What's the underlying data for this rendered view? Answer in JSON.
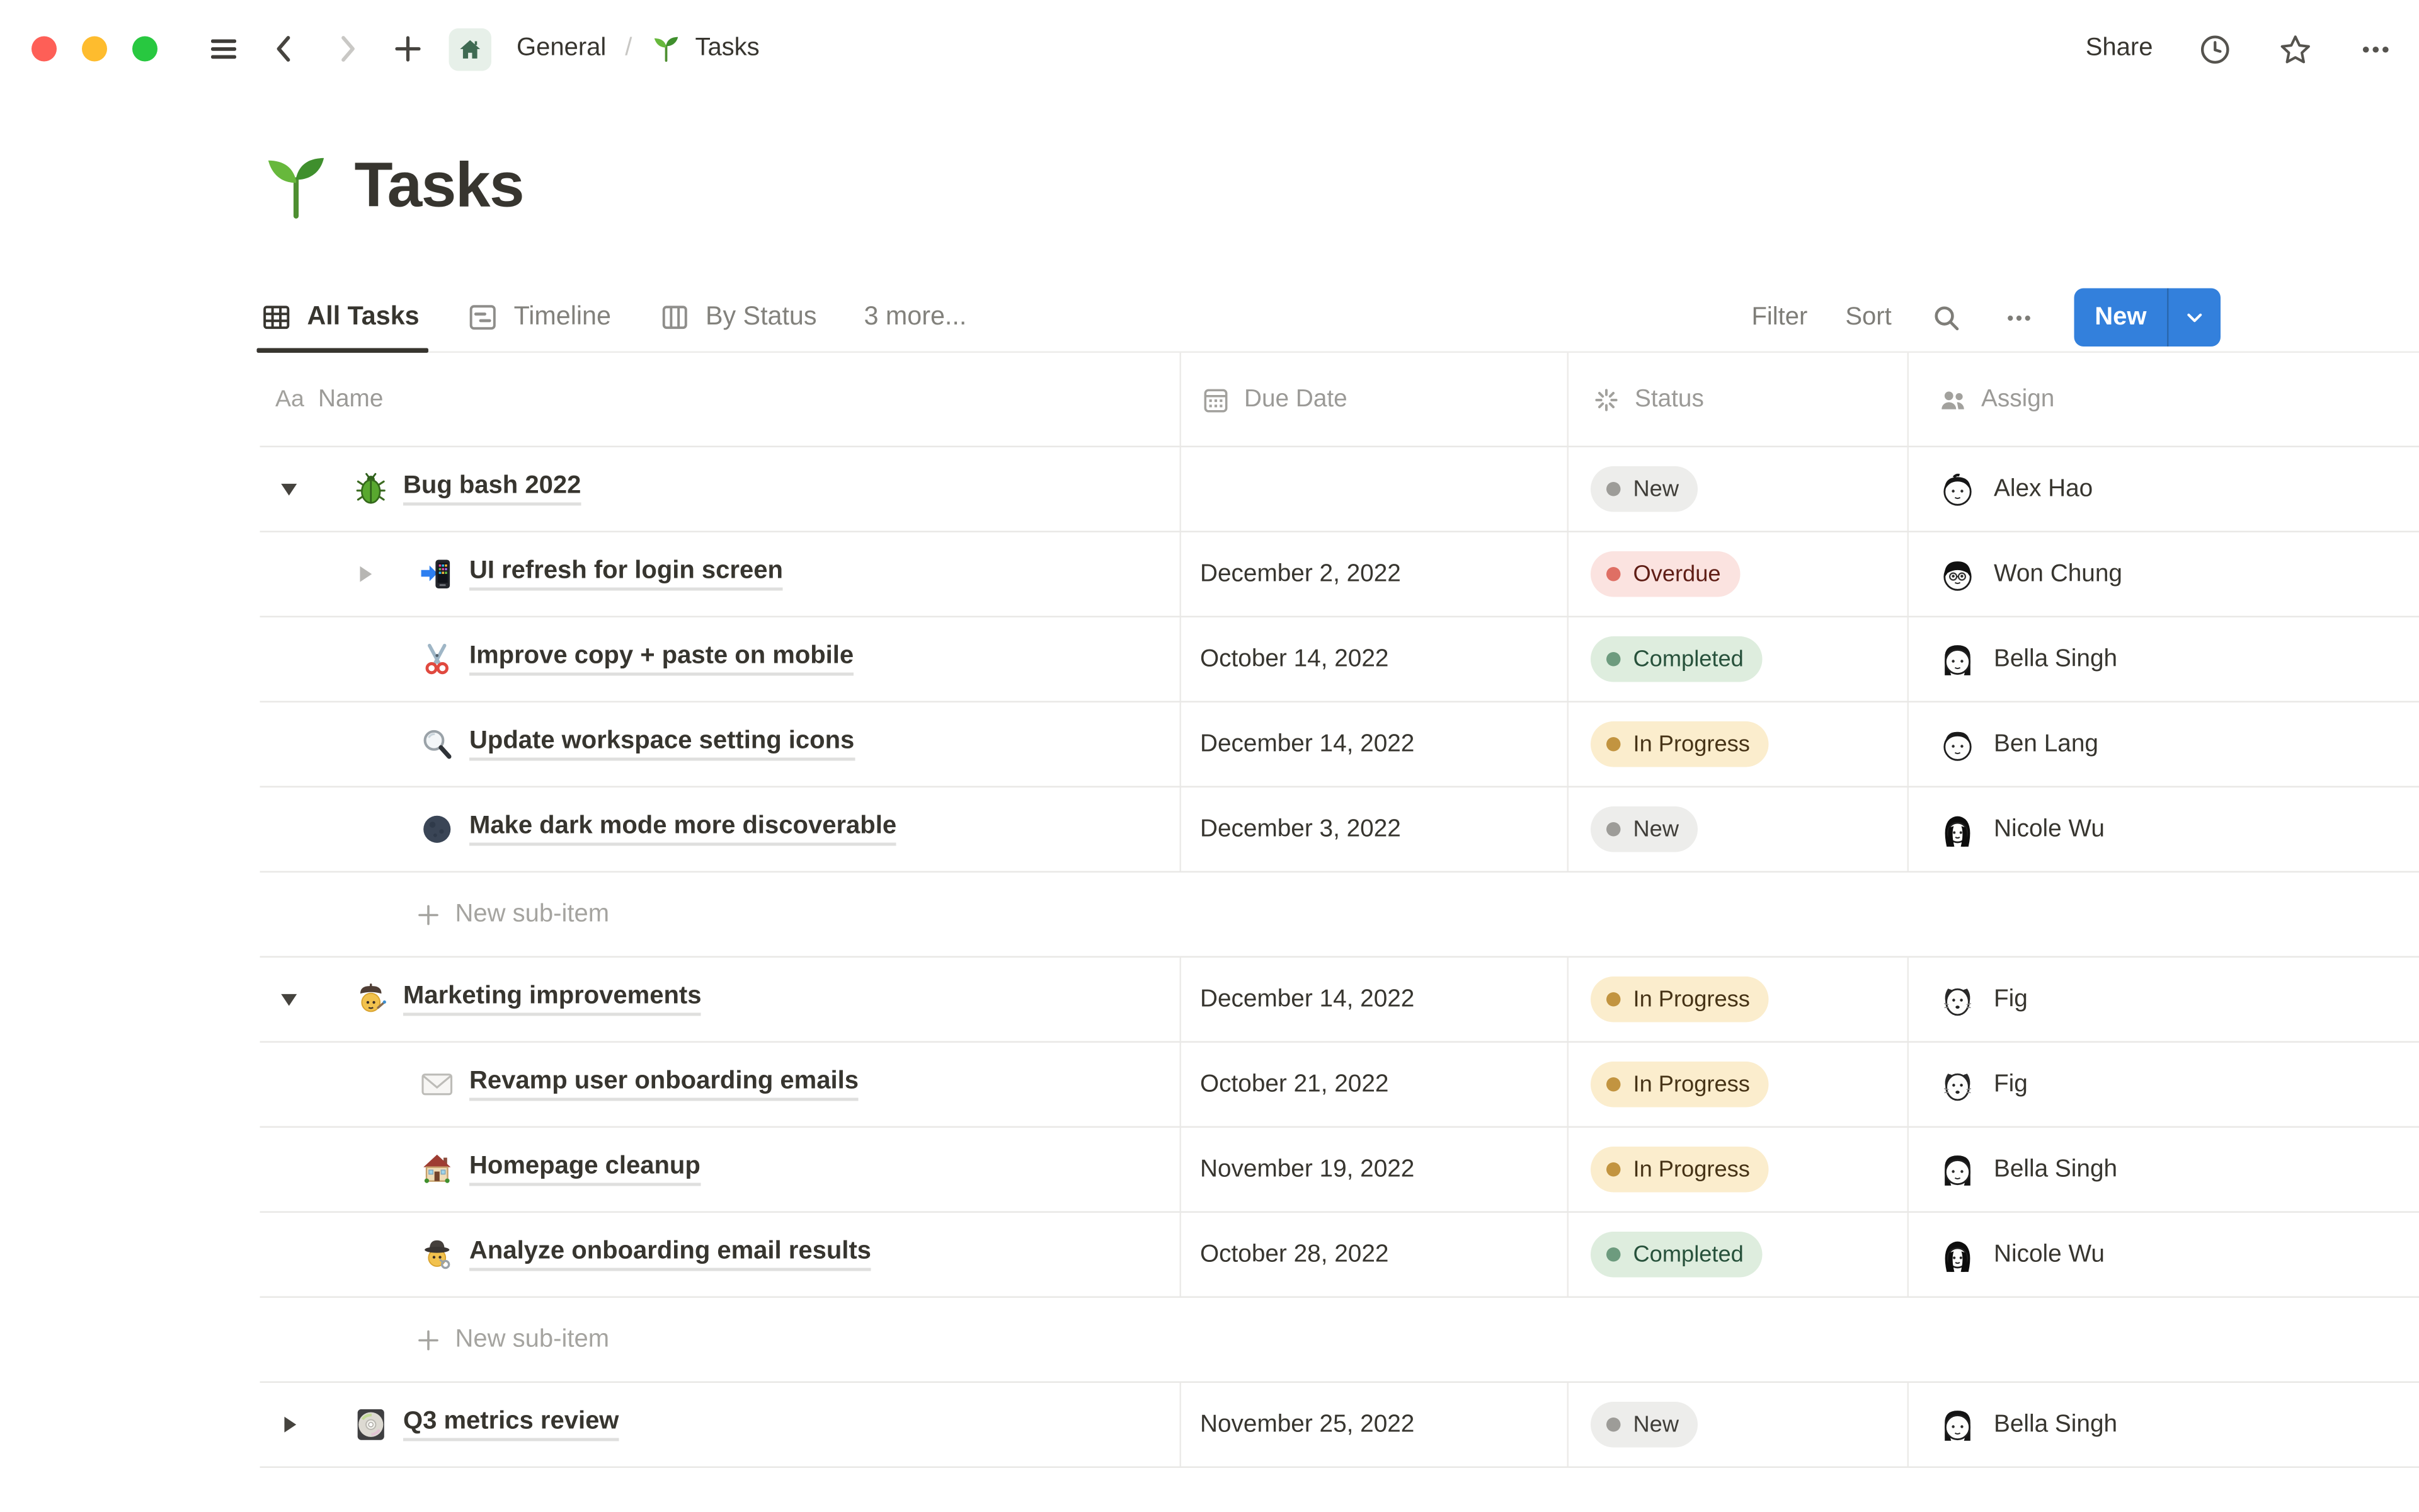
{
  "window": {
    "traffic_light_colors": [
      "#FE5F57",
      "#FEBC2E",
      "#28C840"
    ],
    "breadcrumb": {
      "section": "General",
      "separator": "/",
      "page": "Tasks"
    },
    "share_label": "Share"
  },
  "page": {
    "title": "Tasks",
    "title_icon": "seedling-emoji"
  },
  "tabs": [
    {
      "label": "All Tasks",
      "icon": "table-view-icon",
      "active": true
    },
    {
      "label": "Timeline",
      "icon": "timeline-view-icon",
      "active": false
    },
    {
      "label": "By Status",
      "icon": "board-view-icon",
      "active": false
    },
    {
      "label": "3 more...",
      "icon": null,
      "active": false
    }
  ],
  "controls": {
    "filter_label": "Filter",
    "sort_label": "Sort",
    "new_label": "New",
    "new_button_color": "#3380DC"
  },
  "status_styles": {
    "gray": {
      "bg": "#EDEDEB",
      "dot": "#9D9C98",
      "text": "#3F3D38"
    },
    "red": {
      "bg": "#FBE3E0",
      "dot": "#DF6F64",
      "text": "#5F1D15"
    },
    "green": {
      "bg": "#DEEDDE",
      "dot": "#6D9B7E",
      "text": "#27513B"
    },
    "yellow": {
      "bg": "#FBEDCD",
      "dot": "#C29440",
      "text": "#463316"
    }
  },
  "table": {
    "columns": [
      {
        "icon": "text-icon",
        "label": "Name"
      },
      {
        "icon": "calendar-icon",
        "label": "Due Date"
      },
      {
        "icon": "status-spinner-icon",
        "label": "Status"
      },
      {
        "icon": "people-icon",
        "label": "Assign"
      }
    ],
    "new_sub_item_label": "New sub-item",
    "rows": [
      {
        "type": "task",
        "indent": 0,
        "toggle": "down",
        "toggle_tone": "dark",
        "icon": "beetle-emoji",
        "name": "Bug bash 2022",
        "due": "",
        "status": "New",
        "status_tone": "gray",
        "assignee": "Alex Hao",
        "avatar": "alex"
      },
      {
        "type": "task",
        "indent": 1,
        "toggle": "right",
        "toggle_tone": "light",
        "icon": "phone-arrow-emoji",
        "name": "UI refresh for login screen",
        "due": "December 2, 2022",
        "status": "Overdue",
        "status_tone": "red",
        "assignee": "Won Chung",
        "avatar": "won"
      },
      {
        "type": "task",
        "indent": 1,
        "toggle": null,
        "icon": "scissors-emoji",
        "name": "Improve copy + paste on mobile",
        "due": "October 14, 2022",
        "status": "Completed",
        "status_tone": "green",
        "assignee": "Bella Singh",
        "avatar": "bella"
      },
      {
        "type": "task",
        "indent": 1,
        "toggle": null,
        "icon": "magnifier-emoji",
        "name": "Update workspace setting icons",
        "due": "December 14, 2022",
        "status": "In Progress",
        "status_tone": "yellow",
        "assignee": "Ben Lang",
        "avatar": "ben"
      },
      {
        "type": "task",
        "indent": 1,
        "toggle": null,
        "icon": "moon-emoji",
        "name": "Make dark mode more discoverable",
        "due": "December 3, 2022",
        "status": "New",
        "status_tone": "gray",
        "assignee": "Nicole Wu",
        "avatar": "nicole"
      },
      {
        "type": "new-sub-item"
      },
      {
        "type": "task",
        "indent": 0,
        "toggle": "down",
        "toggle_tone": "dark",
        "icon": "artist-emoji",
        "name": "Marketing improvements",
        "due": "December 14, 2022",
        "status": "In Progress",
        "status_tone": "yellow",
        "assignee": "Fig",
        "avatar": "fig"
      },
      {
        "type": "task",
        "indent": 1,
        "toggle": null,
        "icon": "envelope-emoji",
        "name": "Revamp user onboarding emails",
        "due": "October 21, 2022",
        "status": "In Progress",
        "status_tone": "yellow",
        "assignee": "Fig",
        "avatar": "fig"
      },
      {
        "type": "task",
        "indent": 1,
        "toggle": null,
        "icon": "house-emoji",
        "name": "Homepage cleanup",
        "due": "November 19, 2022",
        "status": "In Progress",
        "status_tone": "yellow",
        "assignee": "Bella Singh",
        "avatar": "bella"
      },
      {
        "type": "task",
        "indent": 1,
        "toggle": null,
        "icon": "detective-emoji",
        "name": "Analyze onboarding email results",
        "due": "October 28, 2022",
        "status": "Completed",
        "status_tone": "green",
        "assignee": "Nicole Wu",
        "avatar": "nicole"
      },
      {
        "type": "new-sub-item"
      },
      {
        "type": "task",
        "indent": 0,
        "toggle": "right",
        "toggle_tone": "dark",
        "icon": "cd-emoji",
        "name": "Q3 metrics review",
        "due": "November 25, 2022",
        "status": "New",
        "status_tone": "gray",
        "assignee": "Bella Singh",
        "avatar": "bella"
      }
    ]
  }
}
